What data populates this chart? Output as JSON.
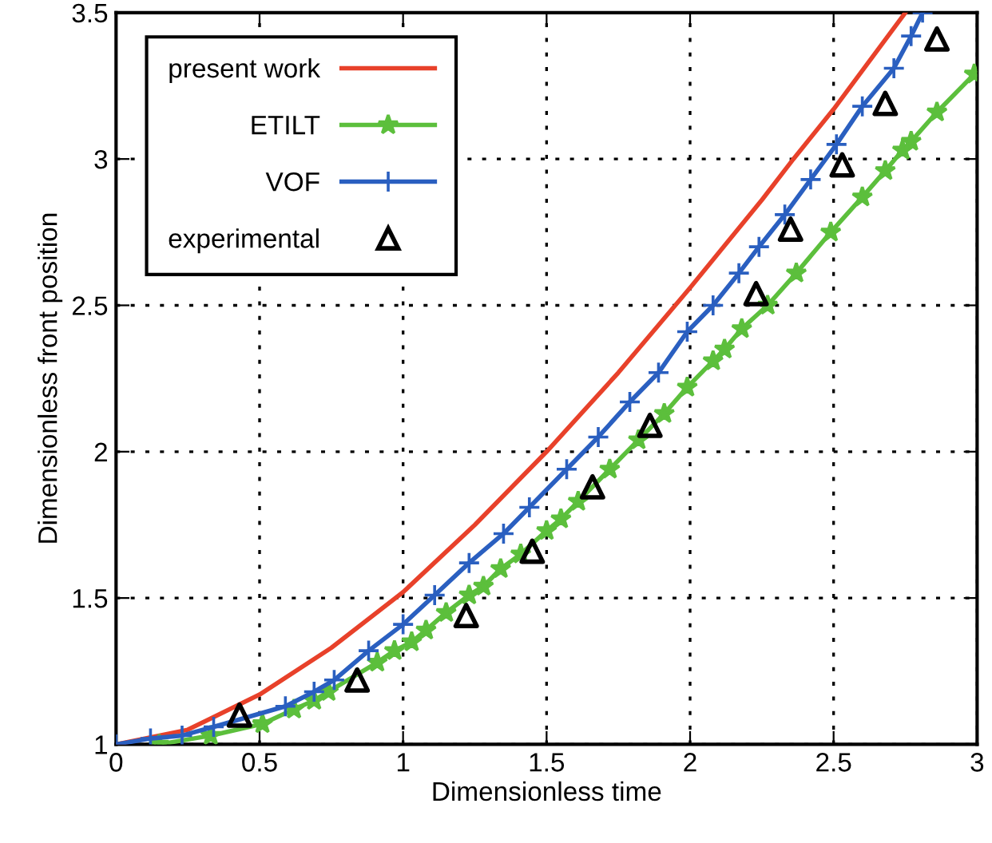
{
  "chart_data": {
    "type": "line",
    "xlabel": "Dimensionless time",
    "ylabel": "Dimensionless front position",
    "xlim": [
      0,
      3
    ],
    "ylim": [
      1,
      3.5
    ],
    "xticks": [
      0,
      0.5,
      1,
      1.5,
      2,
      2.5,
      3
    ],
    "yticks": [
      1,
      1.5,
      2,
      2.5,
      3,
      3.5
    ],
    "grid": true,
    "legend": "top left",
    "line_style": "solid",
    "series": [
      {
        "name": "present work",
        "color": "#e8412a",
        "marker": "none",
        "x": [
          0,
          0.25,
          0.5,
          0.75,
          1,
          1.25,
          1.5,
          1.75,
          2,
          2.25,
          2.36,
          2.5,
          2.75
        ],
        "values": [
          1,
          1.05,
          1.17,
          1.33,
          1.52,
          1.75,
          2.0,
          2.27,
          2.56,
          2.86,
          3.0,
          3.17,
          3.5
        ]
      },
      {
        "name": "ETILT",
        "color": "#5cbf3c",
        "marker": "star",
        "x": [
          0.15,
          0.33,
          0.51,
          0.62,
          0.69,
          0.74,
          0.91,
          0.97,
          1.03,
          1.08,
          1.15,
          1.23,
          1.28,
          1.34,
          1.41,
          1.5,
          1.55,
          1.61,
          1.72,
          1.82,
          1.91,
          1.99,
          2.08,
          2.12,
          2.18,
          2.27,
          2.37,
          2.49,
          2.6,
          2.68,
          2.74,
          2.77,
          2.86,
          2.99
        ],
        "values": [
          1.0,
          1.03,
          1.07,
          1.12,
          1.15,
          1.18,
          1.28,
          1.32,
          1.35,
          1.39,
          1.45,
          1.51,
          1.54,
          1.6,
          1.65,
          1.73,
          1.77,
          1.83,
          1.94,
          2.04,
          2.13,
          2.22,
          2.31,
          2.35,
          2.42,
          2.5,
          2.61,
          2.75,
          2.87,
          2.96,
          3.03,
          3.06,
          3.16,
          3.29
        ]
      },
      {
        "name": "VOF",
        "color": "#2a5fc0",
        "marker": "cross",
        "x": [
          0,
          0.12,
          0.23,
          0.34,
          0.59,
          0.69,
          0.76,
          0.88,
          1.0,
          1.11,
          1.23,
          1.35,
          1.44,
          1.57,
          1.68,
          1.79,
          1.89,
          1.99,
          2.08,
          2.17,
          2.24,
          2.33,
          2.42,
          2.51,
          2.6,
          2.71,
          2.77,
          2.81
        ],
        "values": [
          1,
          1.02,
          1.03,
          1.06,
          1.13,
          1.18,
          1.22,
          1.32,
          1.41,
          1.51,
          1.62,
          1.72,
          1.81,
          1.94,
          2.05,
          2.17,
          2.27,
          2.41,
          2.5,
          2.61,
          2.7,
          2.81,
          2.93,
          3.05,
          3.18,
          3.31,
          3.42,
          3.5
        ]
      },
      {
        "name": "experimental",
        "type": "scatter",
        "color": "#000000",
        "marker": "triangle",
        "x": [
          0.43,
          0.84,
          1.22,
          1.45,
          1.66,
          1.86,
          2.23,
          2.35,
          2.53,
          2.68,
          2.86
        ],
        "values": [
          1.1,
          1.22,
          1.44,
          1.66,
          1.88,
          2.09,
          2.54,
          2.76,
          2.98,
          3.19,
          3.41
        ]
      }
    ]
  }
}
